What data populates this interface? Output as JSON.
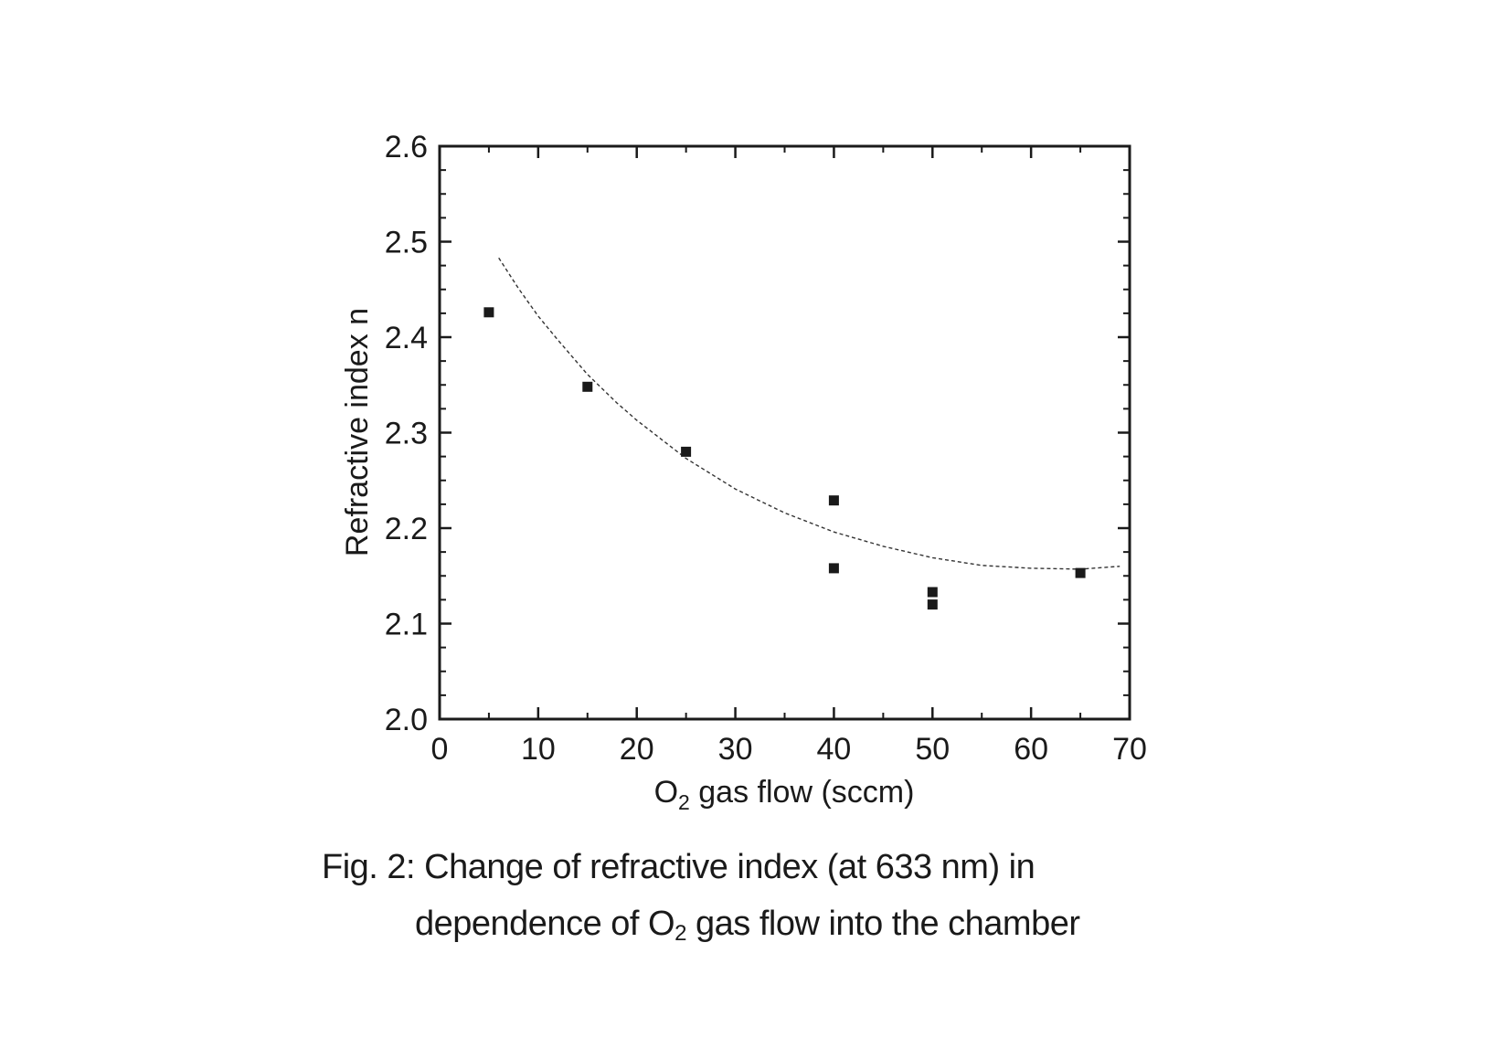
{
  "chart_data": {
    "type": "scatter",
    "xlabel_parts": [
      "O",
      "2",
      " gas flow (sccm)"
    ],
    "ylabel": "Refractive index n",
    "xlim": [
      0,
      70
    ],
    "ylim": [
      2.0,
      2.6
    ],
    "x_ticks": [
      "0",
      "10",
      "20",
      "30",
      "40",
      "50",
      "60",
      "70"
    ],
    "y_ticks": [
      "2.0",
      "2.1",
      "2.2",
      "2.3",
      "2.4",
      "2.5",
      "2.6"
    ],
    "points": [
      {
        "x": 5,
        "y": 2.426
      },
      {
        "x": 15,
        "y": 2.348
      },
      {
        "x": 25,
        "y": 2.28
      },
      {
        "x": 40,
        "y": 2.229
      },
      {
        "x": 40,
        "y": 2.158
      },
      {
        "x": 50,
        "y": 2.133
      },
      {
        "x": 50,
        "y": 2.12
      },
      {
        "x": 65,
        "y": 2.153
      }
    ],
    "fit_curve": {
      "style": "dashed",
      "x": [
        6,
        8,
        10,
        12,
        15,
        18,
        20,
        25,
        30,
        35,
        40,
        45,
        50,
        55,
        60,
        65,
        69
      ],
      "y": [
        2.483,
        2.451,
        2.422,
        2.397,
        2.361,
        2.331,
        2.313,
        2.273,
        2.241,
        2.216,
        2.196,
        2.181,
        2.169,
        2.161,
        2.158,
        2.157,
        2.16
      ]
    },
    "grid": false,
    "legend": "none"
  },
  "caption": {
    "line1": "Fig. 2: Change of refractive index (at 633 nm) in",
    "line2_pre": "dependence of O",
    "line2_sub": "2",
    "line2_post": " gas flow into the chamber"
  }
}
